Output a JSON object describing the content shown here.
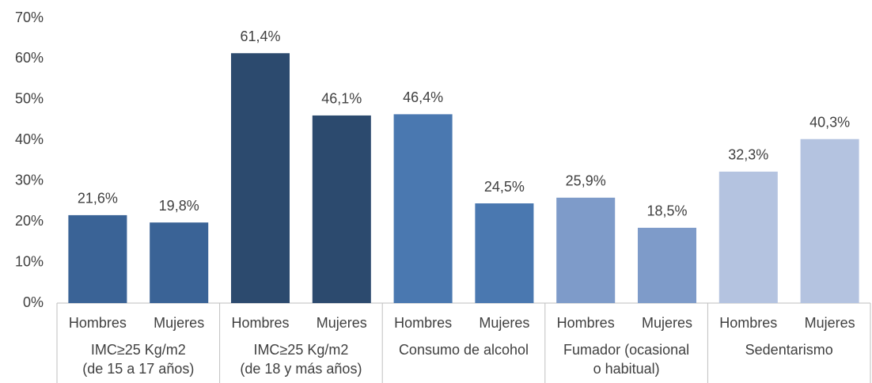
{
  "chart_data": {
    "type": "bar",
    "categories": [
      "Hombres",
      "Mujeres",
      "Hombres",
      "Mujeres",
      "Hombres",
      "Mujeres",
      "Hombres",
      "Mujeres",
      "Hombres",
      "Mujeres"
    ],
    "groups": [
      {
        "lines": [
          "IMC≥25 Kg/m2",
          "(de 15 a 17 años)"
        ],
        "color": "#3a6396"
      },
      {
        "lines": [
          "IMC≥25 Kg/m2",
          "(de 18 y más años)"
        ],
        "color": "#2c4a6e"
      },
      {
        "lines": [
          "Consumo de alcohol"
        ],
        "color": "#4a78b0"
      },
      {
        "lines": [
          "Fumador (ocasional",
          "o habitual)"
        ],
        "color": "#7e9bc9"
      },
      {
        "lines": [
          "Sedentarismo"
        ],
        "color": "#b4c3e0"
      }
    ],
    "values": [
      21.6,
      19.8,
      61.4,
      46.1,
      46.4,
      24.5,
      25.9,
      18.5,
      32.3,
      40.3
    ],
    "value_labels": [
      "21,6%",
      "19,8%",
      "61,4%",
      "46,1%",
      "46,4%",
      "24,5%",
      "25,9%",
      "18,5%",
      "32,3%",
      "40,3%"
    ],
    "ylim": [
      0,
      70
    ],
    "yticks": [
      {
        "value": 0,
        "label": "0%"
      },
      {
        "value": 10,
        "label": "10%"
      },
      {
        "value": 20,
        "label": "20%"
      },
      {
        "value": 30,
        "label": "30%"
      },
      {
        "value": 40,
        "label": "40%"
      },
      {
        "value": 50,
        "label": "50%"
      },
      {
        "value": 60,
        "label": "60%"
      },
      {
        "value": 70,
        "label": "70%"
      }
    ],
    "grid": false
  }
}
